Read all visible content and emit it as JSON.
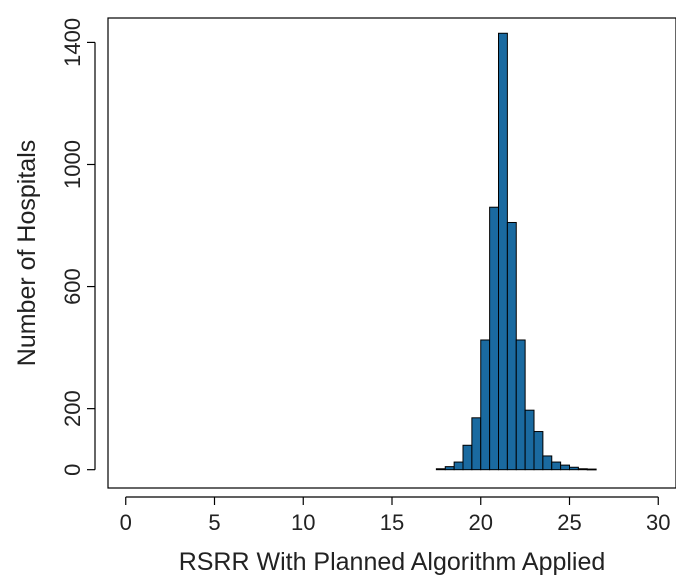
{
  "chart_data": {
    "type": "bar",
    "title": "",
    "xlabel": "RSRR With Planned Algorithm Applied",
    "ylabel": "Number of Hospitals",
    "xlim": [
      -1,
      31
    ],
    "ylim": [
      -60,
      1480
    ],
    "x_ticks": [
      0,
      5,
      10,
      15,
      20,
      25,
      30
    ],
    "y_ticks": [
      0,
      200,
      600,
      1000,
      1400
    ],
    "bin_width": 0.5,
    "bins": [
      {
        "start": 17.5,
        "value": 3
      },
      {
        "start": 18.0,
        "value": 10
      },
      {
        "start": 18.5,
        "value": 25
      },
      {
        "start": 19.0,
        "value": 80
      },
      {
        "start": 19.5,
        "value": 170
      },
      {
        "start": 20.0,
        "value": 425
      },
      {
        "start": 20.5,
        "value": 860
      },
      {
        "start": 21.0,
        "value": 1430
      },
      {
        "start": 21.5,
        "value": 810
      },
      {
        "start": 22.0,
        "value": 425
      },
      {
        "start": 22.5,
        "value": 195
      },
      {
        "start": 23.0,
        "value": 125
      },
      {
        "start": 23.5,
        "value": 45
      },
      {
        "start": 24.0,
        "value": 25
      },
      {
        "start": 24.5,
        "value": 15
      },
      {
        "start": 25.0,
        "value": 8
      },
      {
        "start": 25.5,
        "value": 3
      },
      {
        "start": 26.0,
        "value": 2
      }
    ],
    "bar_color": "#1a6aa0",
    "bar_edge_color": "#000000",
    "grid": false
  }
}
